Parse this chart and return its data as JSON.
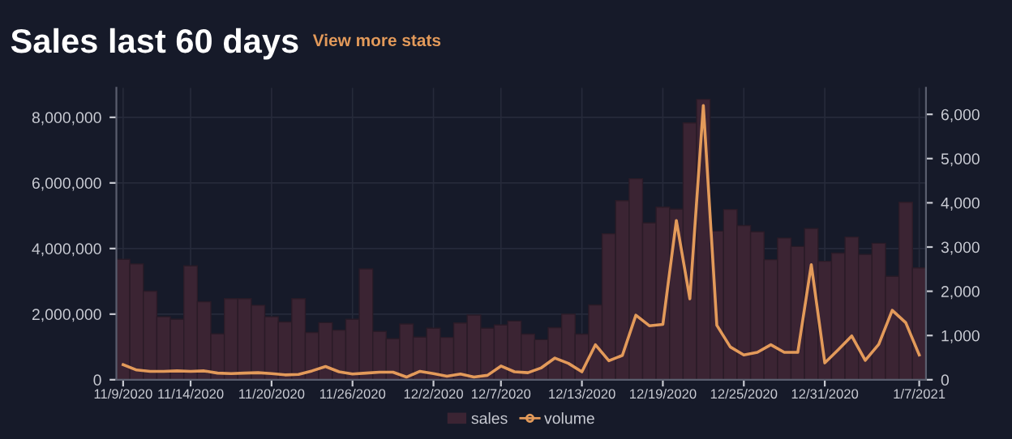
{
  "chart_data": {
    "type": "bar",
    "title": "Sales last 60 days",
    "subtitle": "View more stats",
    "categories": [
      "11/9/2020",
      null,
      null,
      null,
      null,
      "11/14/2020",
      null,
      null,
      null,
      null,
      null,
      "11/20/2020",
      null,
      null,
      null,
      null,
      null,
      "11/26/2020",
      null,
      null,
      null,
      null,
      null,
      "12/2/2020",
      null,
      null,
      null,
      null,
      "12/7/2020",
      null,
      null,
      null,
      null,
      null,
      "12/13/2020",
      null,
      null,
      null,
      null,
      null,
      "12/19/2020",
      null,
      null,
      null,
      null,
      null,
      "12/25/2020",
      null,
      null,
      null,
      null,
      null,
      "12/31/2020",
      null,
      null,
      null,
      null,
      null,
      null,
      "1/7/2021"
    ],
    "series": [
      {
        "name": "sales",
        "color": "#3b2433",
        "values": [
          3670000,
          3530000,
          2700000,
          1920000,
          1840000,
          3470000,
          2380000,
          1400000,
          2470000,
          2470000,
          2270000,
          1920000,
          1760000,
          2470000,
          1440000,
          1740000,
          1510000,
          1840000,
          3380000,
          1470000,
          1250000,
          1700000,
          1300000,
          1570000,
          1290000,
          1730000,
          1970000,
          1570000,
          1670000,
          1790000,
          1390000,
          1220000,
          1590000,
          2000000,
          1390000,
          2280000,
          4450000,
          5460000,
          6130000,
          4780000,
          5260000,
          5200000,
          7830000,
          8550000,
          4530000,
          5190000,
          4700000,
          4510000,
          3660000,
          4320000,
          4060000,
          4610000,
          3610000,
          3860000,
          4350000,
          3820000,
          4160000,
          3150000,
          5410000,
          3410000
        ]
      },
      {
        "name": "volume",
        "type": "line",
        "axis": "y2",
        "color": "#e39a5a",
        "values": [
          340,
          220,
          190,
          190,
          200,
          190,
          200,
          150,
          140,
          150,
          160,
          140,
          110,
          120,
          200,
          300,
          180,
          130,
          150,
          170,
          170,
          60,
          190,
          140,
          80,
          130,
          60,
          100,
          310,
          180,
          160,
          270,
          490,
          370,
          180,
          790,
          430,
          550,
          1460,
          1220,
          1250,
          3600,
          1830,
          6200,
          1230,
          740,
          560,
          620,
          790,
          620,
          620,
          2600,
          380,
          680,
          990,
          440,
          800,
          1570,
          1290,
          560
        ]
      }
    ],
    "ylim": [
      0,
      8900000
    ],
    "yticks": [
      0,
      {
        "value": 2000000,
        "label": "2,000,000"
      },
      {
        "value": 4000000,
        "label": "4,000,000"
      },
      {
        "value": 6000000,
        "label": "6,000,000"
      },
      {
        "value": 8000000,
        "label": "8,000,000"
      }
    ],
    "y2lim": [
      0,
      6600
    ],
    "y2ticks": [
      0,
      {
        "value": 1000,
        "label": "1,000"
      },
      {
        "value": 2000,
        "label": "2,000"
      },
      {
        "value": 3000,
        "label": "3,000"
      },
      {
        "value": 4000,
        "label": "4,000"
      },
      {
        "value": 5000,
        "label": "5,000"
      },
      {
        "value": 6000,
        "label": "6,000"
      }
    ],
    "grid": true,
    "legend": "bottom",
    "line_style": "solid"
  }
}
